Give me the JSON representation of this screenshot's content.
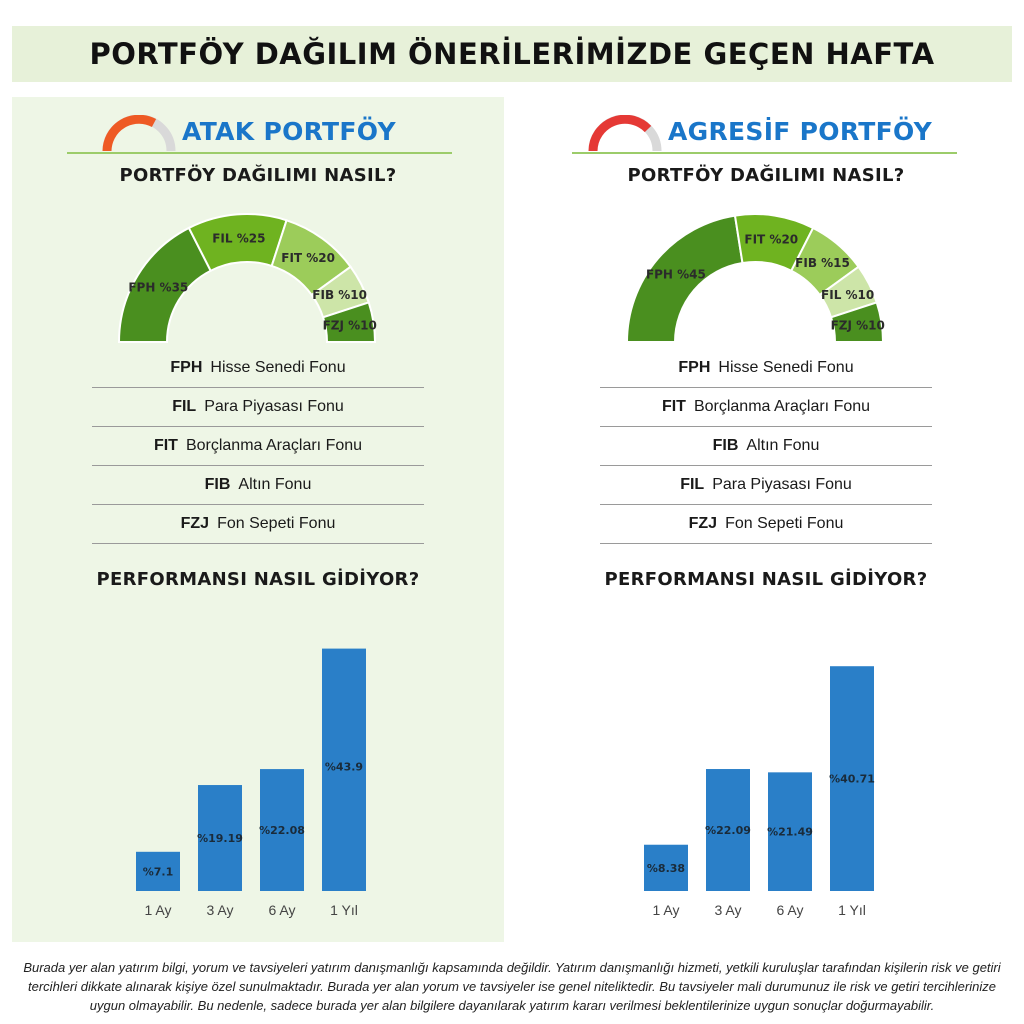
{
  "title": "PORTFÖY DAĞILIM ÖNERİLERİMİZDE GEÇEN HAFTA",
  "panels": [
    {
      "name": "ATAK PORTFÖY",
      "icon_color": "#ee5a24",
      "allocation_heading": "PORTFÖY DAĞILIMI NASIL?",
      "performance_heading": "PERFORMANSI NASIL GİDİYOR?",
      "legend": [
        {
          "code": "FPH",
          "name": "Hisse Senedi Fonu"
        },
        {
          "code": "FIL",
          "name": "Para Piyasası Fonu"
        },
        {
          "code": "FIT",
          "name": "Borçlanma Araçları Fonu"
        },
        {
          "code": "FIB",
          "name": "Altın Fonu"
        },
        {
          "code": "FZJ",
          "name": "Fon Sepeti Fonu"
        }
      ]
    },
    {
      "name": "AGRESİF PORTFÖY",
      "icon_color": "#e53935",
      "allocation_heading": "PORTFÖY DAĞILIMI NASIL?",
      "performance_heading": "PERFORMANSI NASIL GİDİYOR?",
      "legend": [
        {
          "code": "FPH",
          "name": "Hisse Senedi Fonu"
        },
        {
          "code": "FIT",
          "name": "Borçlanma Araçları Fonu"
        },
        {
          "code": "FIB",
          "name": "Altın Fonu"
        },
        {
          "code": "FIL",
          "name": "Para Piyasası Fonu"
        },
        {
          "code": "FZJ",
          "name": "Fon Sepeti Fonu"
        }
      ]
    }
  ],
  "chart_data": [
    {
      "type": "pie",
      "style": "half-donut",
      "labels": [
        "FPH",
        "FIL",
        "FIT",
        "FIB",
        "FZJ"
      ],
      "values": [
        35,
        25,
        20,
        10,
        10
      ],
      "data_labels": [
        "FPH %35",
        "FIL %25",
        "FIT %20",
        "FIB %10",
        "FZJ %10"
      ],
      "colors": [
        "#4a8f1f",
        "#6fb320",
        "#9ccc5a",
        "#cde5a8",
        "#4a8f1f"
      ]
    },
    {
      "type": "bar",
      "categories": [
        "1 Ay",
        "3 Ay",
        "6 Ay",
        "1 Yıl"
      ],
      "values": [
        7.1,
        19.19,
        22.08,
        43.9
      ],
      "data_labels": [
        "%7.1",
        "%19.19",
        "%22.08",
        "%43.9"
      ],
      "ylim": [
        0,
        46
      ],
      "color": "#2a7fc8"
    },
    {
      "type": "pie",
      "style": "half-donut",
      "labels": [
        "FPH",
        "FIT",
        "FIB",
        "FIL",
        "FZJ"
      ],
      "values": [
        45,
        20,
        15,
        10,
        10
      ],
      "data_labels": [
        "FPH %45",
        "FIT %20",
        "FIB %15",
        "FIL %10",
        "FZJ %10"
      ],
      "colors": [
        "#4a8f1f",
        "#6fb320",
        "#9ccc5a",
        "#cde5a8",
        "#4a8f1f"
      ]
    },
    {
      "type": "bar",
      "categories": [
        "1 Ay",
        "3 Ay",
        "6 Ay",
        "1 Yıl"
      ],
      "values": [
        8.38,
        22.09,
        21.49,
        40.71
      ],
      "data_labels": [
        "%8.38",
        "%22.09",
        "%21.49",
        "%40.71"
      ],
      "ylim": [
        0,
        46
      ],
      "color": "#2a7fc8"
    }
  ],
  "footer": "Burada yer alan yatırım bilgi, yorum ve tavsiyeleri yatırım danışmanlığı kapsamında değildir. Yatırım danışmanlığı hizmeti, yetkili kuruluşlar tarafından kişilerin risk ve getiri tercihleri dikkate alınarak kişiye özel sunulmaktadır. Burada yer alan yorum ve tavsiyeler ise genel niteliktedir. Bu tavsiyeler mali durumunuz ile risk ve getiri tercihlerinize uygun olmayabilir. Bu nedenle, sadece burada yer alan bilgilere dayanılarak yatırım kararı verilmesi beklentilerinize uygun sonuçlar doğurmayabilir."
}
